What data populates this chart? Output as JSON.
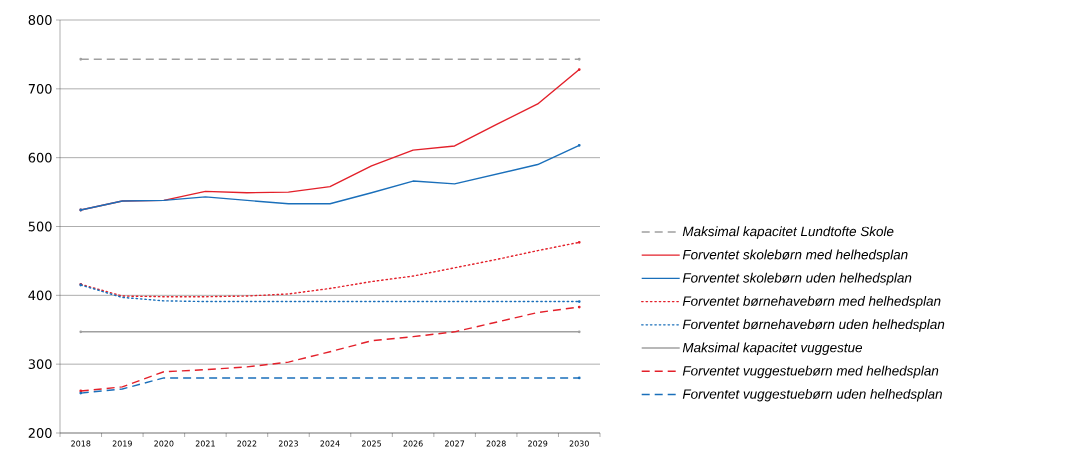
{
  "chart_data": {
    "type": "line",
    "categories": [
      "2018",
      "2019",
      "2020",
      "2021",
      "2022",
      "2023",
      "2024",
      "2025",
      "2026",
      "2027",
      "2028",
      "2029",
      "2030"
    ],
    "ylim": [
      200,
      800
    ],
    "yticks": [
      200,
      300,
      400,
      500,
      600,
      700,
      800
    ],
    "grid": "y",
    "legend": "right",
    "series": [
      {
        "name": "Maksimal kapacitet Lundtofte Skole",
        "color": "#a0a0a0",
        "line_style": "dashed",
        "values": [
          743,
          743,
          743,
          743,
          743,
          743,
          743,
          743,
          743,
          743,
          743,
          743,
          743
        ]
      },
      {
        "name": "Forventet skolebørn med helhedsplan",
        "color": "#e3202a",
        "line_style": "solid",
        "values": [
          524,
          537,
          538,
          551,
          549,
          550,
          558,
          588,
          611,
          617,
          648,
          678,
          728
        ]
      },
      {
        "name": "Forventet skolebørn uden helhedsplan",
        "color": "#1a6fba",
        "line_style": "solid",
        "values": [
          524,
          537,
          538,
          543,
          538,
          533,
          533,
          549,
          566,
          562,
          576,
          590,
          618
        ]
      },
      {
        "name": "Forventet børnehavebørn med helhedsplan",
        "color": "#e3202a",
        "line_style": "dotted",
        "values": [
          416,
          399,
          398,
          398,
          399,
          402,
          410,
          420,
          428,
          440,
          452,
          465,
          477
        ]
      },
      {
        "name": "Forventet børnehavebørn uden helhedsplan",
        "color": "#1a6fba",
        "line_style": "dotted",
        "values": [
          415,
          397,
          392,
          391,
          391,
          391,
          391,
          391,
          391,
          391,
          391,
          391,
          391
        ]
      },
      {
        "name": "Maksimal kapacitet vuggestue",
        "color": "#a0a0a0",
        "line_style": "solid",
        "values": [
          347,
          347,
          347,
          347,
          347,
          347,
          347,
          347,
          347,
          347,
          347,
          347,
          347
        ]
      },
      {
        "name": "Forventet vuggestuebørn med helhedsplan",
        "color": "#e3202a",
        "line_style": "dashed",
        "values": [
          261,
          267,
          289,
          292,
          296,
          303,
          318,
          334,
          340,
          347,
          361,
          375,
          383
        ]
      },
      {
        "name": "Forventet vuggestuebørn uden helhedsplan",
        "color": "#1a6fba",
        "line_style": "dashed",
        "values": [
          258,
          264,
          280,
          280,
          280,
          280,
          280,
          280,
          280,
          280,
          280,
          280,
          280
        ]
      }
    ]
  }
}
